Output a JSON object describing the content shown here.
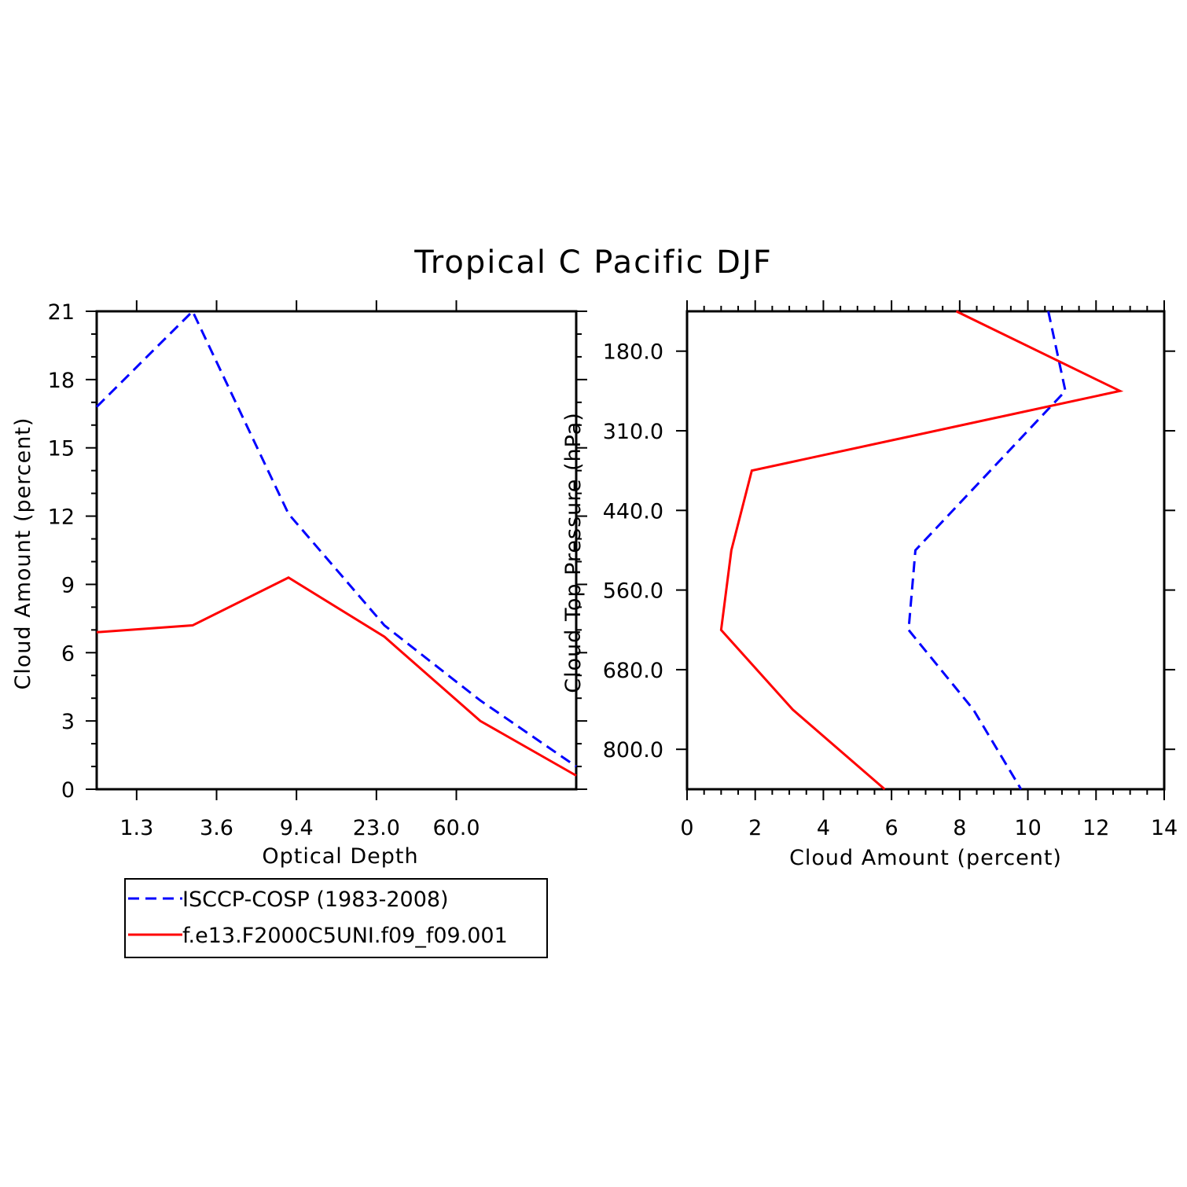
{
  "title": "Tropical C Pacific DJF",
  "colors": {
    "obs": "#0000ff",
    "model": "#ff0000"
  },
  "legend": {
    "items": [
      {
        "label": "ISCCP-COSP (1983-2008)",
        "series": "obs"
      },
      {
        "label": "f.e13.F2000C5UNI.f09_f09.001",
        "series": "model"
      }
    ]
  },
  "chart_data": [
    {
      "type": "line",
      "xlabel": "Optical Depth",
      "ylabel": "Cloud Amount (percent)",
      "x_tick_labels": [
        "1.3",
        "3.6",
        "9.4",
        "23.0",
        "60.0"
      ],
      "y_ticks": [
        0,
        3,
        6,
        9,
        12,
        15,
        18,
        21
      ],
      "ylim": [
        0,
        21
      ],
      "series": [
        {
          "name": "ISCCP-COSP (1983-2008)",
          "key": "obs",
          "style": "dashed",
          "values": [
            16.8,
            21.0,
            12.1,
            7.2,
            3.9,
            1.0
          ]
        },
        {
          "name": "f.e13.F2000C5UNI.f09_f09.001",
          "key": "model",
          "style": "solid",
          "values": [
            6.9,
            7.2,
            9.3,
            6.7,
            3.0,
            0.6
          ]
        }
      ]
    },
    {
      "type": "line",
      "xlabel": "Cloud Amount (percent)",
      "ylabel": "Cloud Top Pressure (hPa)",
      "x_ticks": [
        0,
        2,
        4,
        6,
        8,
        10,
        12,
        14
      ],
      "xlim": [
        0,
        14
      ],
      "y_tick_labels": [
        "180.0",
        "310.0",
        "440.0",
        "560.0",
        "680.0",
        "800.0"
      ],
      "series": [
        {
          "name": "ISCCP-COSP (1983-2008)",
          "key": "obs",
          "style": "dashed",
          "values": [
            10.6,
            11.1,
            8.9,
            6.7,
            6.5,
            8.4,
            9.8
          ]
        },
        {
          "name": "f.e13.F2000C5UNI.f09_f09.001",
          "key": "model",
          "style": "solid",
          "values": [
            7.9,
            12.7,
            1.9,
            1.3,
            1.0,
            3.1,
            5.8
          ]
        }
      ]
    }
  ]
}
